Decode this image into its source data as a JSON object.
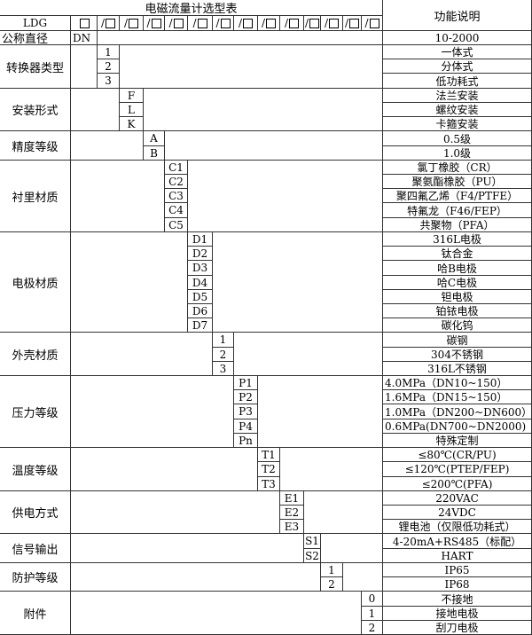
{
  "title": "电磁流量计选型表",
  "function_header": "功能说明",
  "model_prefix": "LDG",
  "header_slot_count": 13,
  "nominal": {
    "label": "公称直径",
    "code": "DN",
    "desc": "10-2000"
  },
  "groups": [
    {
      "label": "转换器类型",
      "codes": [
        "1",
        "2",
        "3"
      ],
      "descs": [
        "一体式",
        "分体式",
        "低功耗式"
      ]
    },
    {
      "label": "安装形式",
      "codes": [
        "F",
        "L",
        "K"
      ],
      "descs": [
        "法兰安装",
        "螺纹安装",
        "卡箍安装"
      ]
    },
    {
      "label": "精度等级",
      "codes": [
        "A",
        "B"
      ],
      "descs": [
        "0.5级",
        "1.0级"
      ]
    },
    {
      "label": "衬里材质",
      "codes": [
        "C1",
        "C2",
        "C3",
        "C4",
        "C5"
      ],
      "descs": [
        "氯丁橡胶（CR）",
        "聚氨酯橡胶（PU）",
        "聚四氟乙烯（F4/PTFE）",
        "特氟龙（F46/FEP）",
        "共聚物（PFA）"
      ]
    },
    {
      "label": "电极材质",
      "codes": [
        "D1",
        "D2",
        "D3",
        "D4",
        "D5",
        "D6",
        "D7"
      ],
      "descs": [
        "316L电极",
        "钛合金",
        "哈B电极",
        "哈C电极",
        "钽电极",
        "铂铱电极",
        "碳化钨"
      ]
    },
    {
      "label": "外壳材质",
      "codes": [
        "1",
        "2",
        "3"
      ],
      "descs": [
        "碳钢",
        "304不锈钢",
        "316L不锈钢"
      ]
    },
    {
      "label": "压力等级",
      "codes": [
        "P1",
        "P2",
        "P3",
        "P4",
        "Pn"
      ],
      "descs": [
        "4.0MPa（DN10~150）",
        "1.6MPa（DN15~150）",
        "1.0MPa（DN200~DN600）",
        "0.6MPa(DN700~DN2000)",
        "特殊定制"
      ]
    },
    {
      "label": "温度等级",
      "codes": [
        "T1",
        "T2",
        "T3"
      ],
      "descs": [
        "≤80℃(CR/PU)",
        "≤120℃(PTEP/FEP)",
        "≤200℃(PFA)"
      ]
    },
    {
      "label": "供电方式",
      "codes": [
        "E1",
        "E2",
        "E3"
      ],
      "descs": [
        "220VAC",
        "24VDC",
        "锂电池（仅限低功耗式）"
      ]
    },
    {
      "label": "信号输出",
      "codes": [
        "S1",
        "S2"
      ],
      "descs": [
        "4-20mA+RS485（标配）",
        "HART"
      ]
    },
    {
      "label": "防护等级",
      "codes": [
        "1",
        "2"
      ],
      "descs": [
        "IP65",
        "IP68"
      ]
    },
    {
      "label": "附件",
      "codes": [
        "0",
        "1",
        "2"
      ],
      "descs": [
        "不接地",
        "接地电极",
        "刮刀电极"
      ]
    }
  ]
}
